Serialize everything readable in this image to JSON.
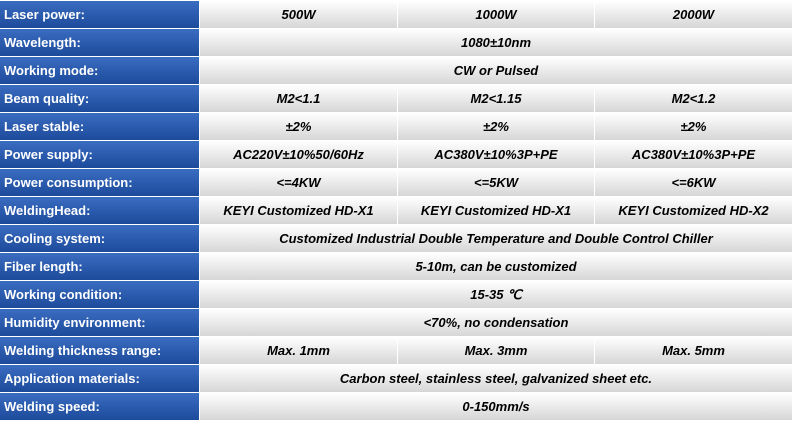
{
  "table": {
    "rows": [
      {
        "label": "Laser power:",
        "cells": [
          "500W",
          "1000W",
          "2000W"
        ]
      },
      {
        "label": "Wavelength:",
        "cells": [
          "1080±10nm"
        ]
      },
      {
        "label": "Working mode:",
        "cells": [
          "CW or Pulsed"
        ]
      },
      {
        "label": "Beam quality:",
        "cells": [
          "M2<1.1",
          "M2<1.15",
          "M2<1.2"
        ]
      },
      {
        "label": "Laser stable:",
        "cells": [
          "±2%",
          "±2%",
          "±2%"
        ]
      },
      {
        "label": "Power supply:",
        "cells": [
          "AC220V±10%50/60Hz",
          "AC380V±10%3P+PE",
          "AC380V±10%3P+PE"
        ]
      },
      {
        "label": "Power consumption:",
        "cells": [
          "<=4KW",
          "<=5KW",
          "<=6KW"
        ]
      },
      {
        "label": "WeldingHead:",
        "cells": [
          "KEYI Customized HD-X1",
          "KEYI Customized HD-X1",
          "KEYI Customized HD-X2"
        ]
      },
      {
        "label": "Cooling system:",
        "cells": [
          "Customized Industrial Double Temperature and Double Control Chiller"
        ]
      },
      {
        "label": "Fiber length:",
        "cells": [
          "5-10m, can be customized"
        ]
      },
      {
        "label": "Working condition:",
        "cells": [
          "15-35 ℃"
        ]
      },
      {
        "label": "Humidity environment:",
        "cells": [
          "<70%, no condensation"
        ]
      },
      {
        "label": "Welding thickness range:",
        "cells": [
          "Max. 1mm",
          "Max. 3mm",
          "Max. 5mm"
        ]
      },
      {
        "label": "Application materials:",
        "cells": [
          "Carbon steel, stainless steel, galvanized sheet etc."
        ]
      },
      {
        "label": "Welding speed:",
        "cells": [
          "0-150mm/s"
        ]
      }
    ]
  }
}
